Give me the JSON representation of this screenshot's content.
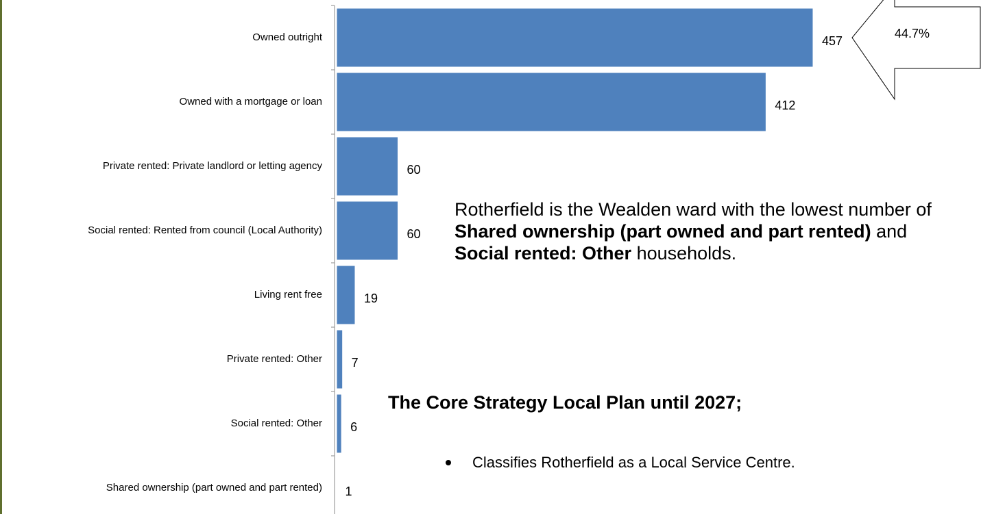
{
  "chart_data": {
    "type": "bar",
    "orientation": "horizontal",
    "categories": [
      "Owned outright",
      "Owned with a mortgage or loan",
      "Private rented: Private landlord or letting agency",
      "Social rented: Rented from council (Local Authority)",
      "Living rent free",
      "Private rented: Other",
      "Social rented: Other",
      "Shared ownership (part owned and part rented)"
    ],
    "values": [
      457,
      412,
      60,
      60,
      19,
      7,
      6,
      1
    ],
    "color": "#4f81bd",
    "callout": "44.7%"
  },
  "text": {
    "paragraph": [
      {
        "text": "Rotherfield is the Wealden ward with the lowest number of ",
        "bold": false
      },
      {
        "text": "Shared ownership (part owned and part rented)",
        "bold": true
      },
      {
        "text": " and ",
        "bold": false
      },
      {
        "text": "Social rented: Other",
        "bold": true
      },
      {
        "text": " households.",
        "bold": false
      }
    ],
    "heading": "The Core Strategy Local Plan until 2027;",
    "bullets": [
      "Classifies Rotherfield as a Local Service Centre."
    ]
  }
}
